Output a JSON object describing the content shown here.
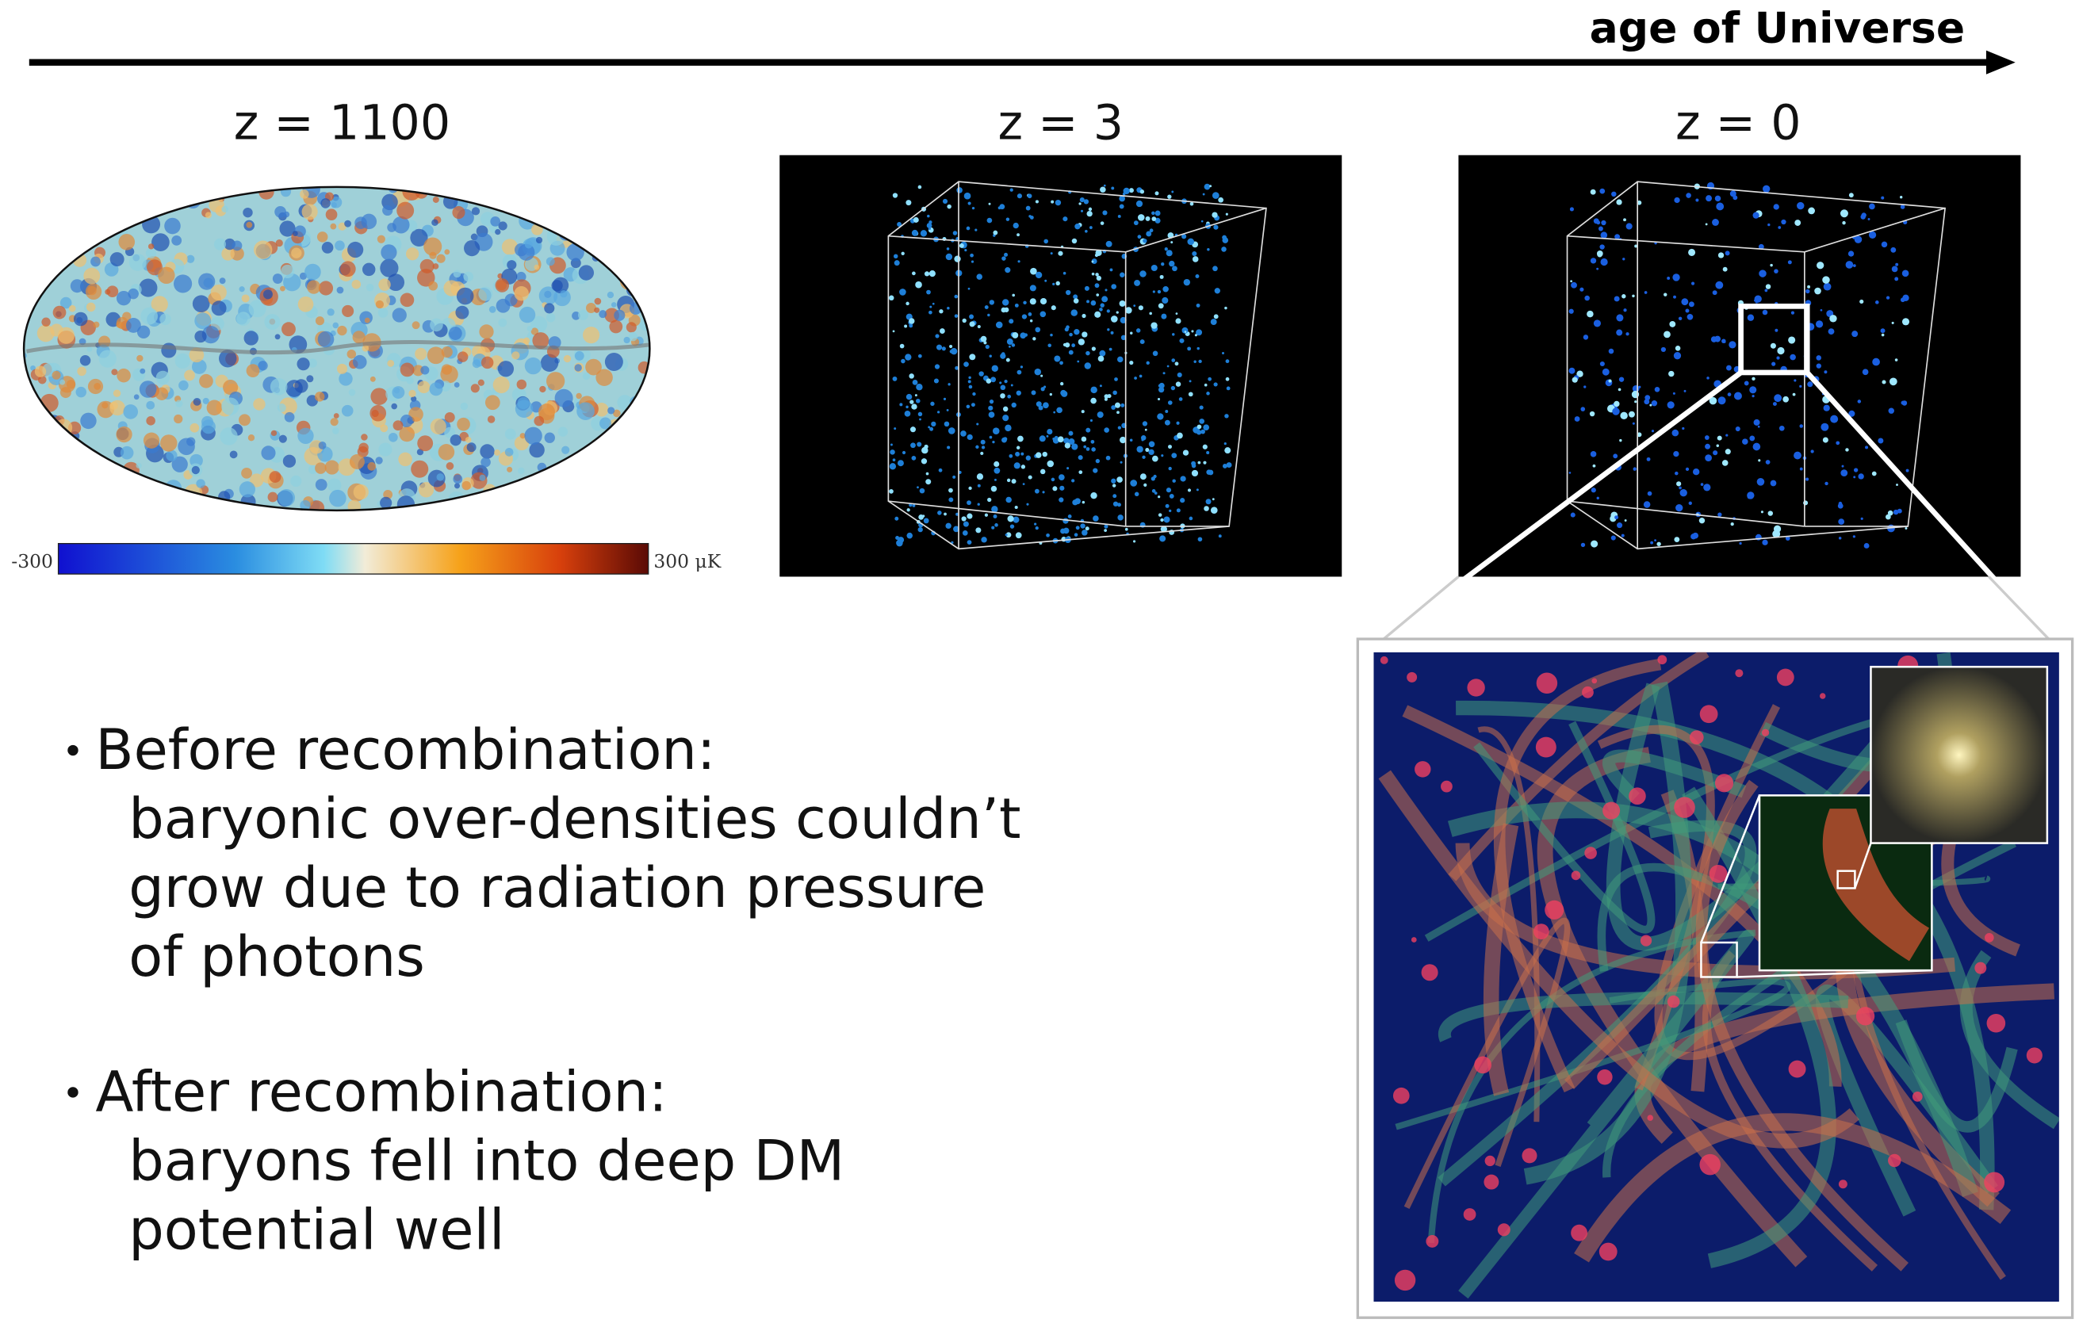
{
  "timeline": {
    "label": "age of Universe"
  },
  "panels": [
    {
      "label": "z = 1100",
      "colorbar": {
        "min_label": "-300",
        "max_label": "300 μK"
      }
    },
    {
      "label": "z = 3"
    },
    {
      "label": "z = 0"
    }
  ],
  "bullets": [
    {
      "heading": "Before recombination:",
      "lines": [
        "baryonic over-densities couldn’t",
        "grow due to radiation pressure",
        "of photons"
      ]
    },
    {
      "heading": "After recombination:",
      "lines": [
        "baryons fell into deep DM",
        "potential well"
      ]
    }
  ]
}
